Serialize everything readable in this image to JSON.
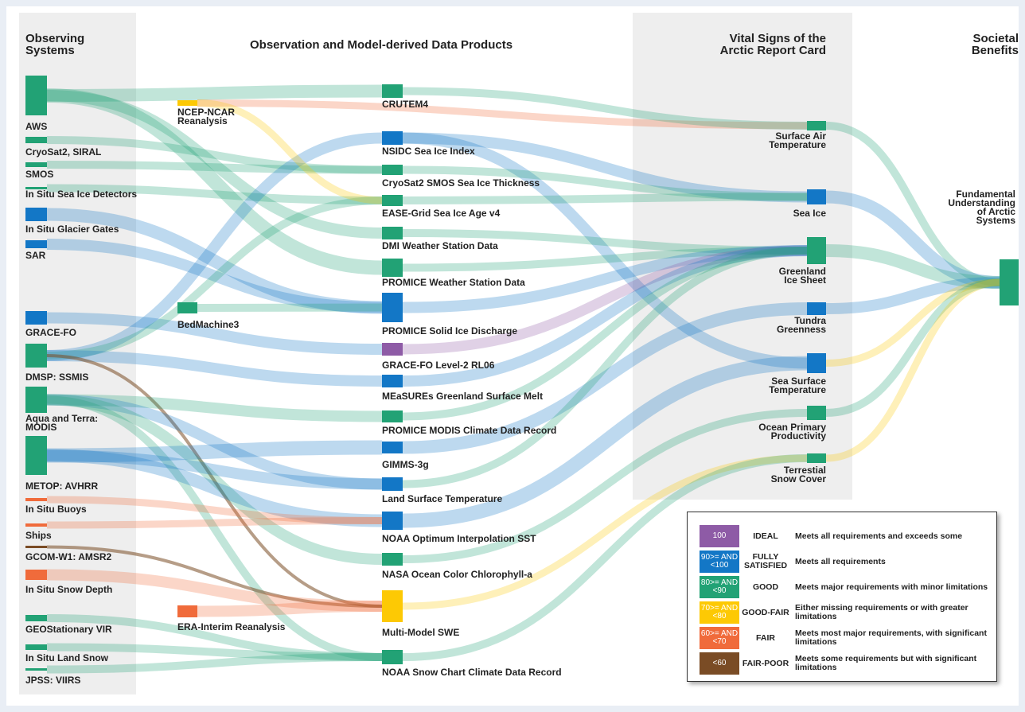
{
  "headers": {
    "observing_systems": "Observing Systems",
    "products": "Observation and Model-derived Data Products",
    "vital_signs": "Vital Signs of the Arctic Report Card",
    "societal_benefits": "Societal Benefits"
  },
  "colors": {
    "ideal": "#8e5ba6",
    "fully_satisfied": "#1377c6",
    "good": "#22a275",
    "good_fair": "#fdc904",
    "fair": "#f06b3b",
    "fair_poor": "#7a4c25"
  },
  "observing_systems": [
    {
      "id": "aws",
      "label": "AWS",
      "rating": "good"
    },
    {
      "id": "cryosat2",
      "label": "CryoSat2, SIRAL",
      "rating": "good"
    },
    {
      "id": "smos",
      "label": "SMOS",
      "rating": "good"
    },
    {
      "id": "insitu_sea_ice",
      "label": "In Situ Sea Ice Detectors",
      "rating": "good"
    },
    {
      "id": "insitu_glacier",
      "label": "In Situ Glacier Gates",
      "rating": "fully_satisfied"
    },
    {
      "id": "sar",
      "label": "SAR",
      "rating": "fully_satisfied"
    },
    {
      "id": "grace_fo",
      "label": "GRACE-FO",
      "rating": "fully_satisfied"
    },
    {
      "id": "dmsp",
      "label": "DMSP: SSMIS",
      "rating": "good"
    },
    {
      "id": "modis",
      "label": "Aqua and Terra: MODIS",
      "rating": "good"
    },
    {
      "id": "metop",
      "label": "METOP: AVHRR",
      "rating": "good"
    },
    {
      "id": "buoys",
      "label": "In Situ Buoys",
      "rating": "fair"
    },
    {
      "id": "ships",
      "label": "Ships",
      "rating": "fair"
    },
    {
      "id": "gcom",
      "label": "GCOM-W1: AMSR2",
      "rating": "fair_poor"
    },
    {
      "id": "snow_depth",
      "label": "In Situ Snow Depth",
      "rating": "fair"
    },
    {
      "id": "geo_vir",
      "label": "GEOStationary VIR",
      "rating": "good"
    },
    {
      "id": "land_snow",
      "label": "In Situ Land Snow",
      "rating": "good"
    },
    {
      "id": "jpss",
      "label": "JPSS: VIIRS",
      "rating": "good"
    }
  ],
  "side_products": [
    {
      "id": "ncep",
      "label": "NCEP-NCAR Reanalysis",
      "rating": "good_fair"
    },
    {
      "id": "bedmachine",
      "label": "BedMachine3",
      "rating": "good"
    },
    {
      "id": "era",
      "label": "ERA-Interim Reanalysis",
      "rating": "fair"
    }
  ],
  "products": [
    {
      "id": "crutem4",
      "label": "CRUTEM4",
      "rating": "good"
    },
    {
      "id": "nsidc",
      "label": "NSIDC Sea Ice Index",
      "rating": "fully_satisfied"
    },
    {
      "id": "cs2smos",
      "label": "CryoSat2 SMOS Sea Ice Thickness",
      "rating": "good"
    },
    {
      "id": "ease",
      "label": "EASE-Grid Sea Ice Age v4",
      "rating": "good"
    },
    {
      "id": "dmi",
      "label": "DMI Weather Station Data",
      "rating": "good"
    },
    {
      "id": "promice_ws",
      "label": "PROMICE Weather Station Data",
      "rating": "good"
    },
    {
      "id": "promice_sid",
      "label": "PROMICE Solid Ice Discharge",
      "rating": "fully_satisfied"
    },
    {
      "id": "grace_l2",
      "label": "GRACE-FO Level-2 RL06",
      "rating": "ideal"
    },
    {
      "id": "measures",
      "label": "MEaSUREs Greenland Surface Melt",
      "rating": "fully_satisfied"
    },
    {
      "id": "promice_modis",
      "label": "PROMICE MODIS Climate Data Record",
      "rating": "good"
    },
    {
      "id": "gimms",
      "label": "GIMMS-3g",
      "rating": "fully_satisfied"
    },
    {
      "id": "lst",
      "label": "Land Surface Temperature",
      "rating": "fully_satisfied"
    },
    {
      "id": "noaa_oisst",
      "label": "NOAA Optimum Interpolation SST",
      "rating": "fully_satisfied"
    },
    {
      "id": "nasa_chl",
      "label": "NASA Ocean Color Chlorophyll-a",
      "rating": "good"
    },
    {
      "id": "swe",
      "label": "Multi-Model SWE",
      "rating": "good_fair"
    },
    {
      "id": "noaa_snow",
      "label": "NOAA Snow Chart Climate Data Record",
      "rating": "good"
    }
  ],
  "vital_signs": [
    {
      "id": "sat",
      "label": "Surface Air Temperature",
      "rating": "good"
    },
    {
      "id": "sea_ice",
      "label": "Sea Ice",
      "rating": "fully_satisfied"
    },
    {
      "id": "greenland",
      "label": "Greenland Ice Sheet",
      "rating": "good"
    },
    {
      "id": "tundra",
      "label": "Tundra Greenness",
      "rating": "fully_satisfied"
    },
    {
      "id": "sst",
      "label": "Sea Surface Temperature",
      "rating": "fully_satisfied"
    },
    {
      "id": "opp",
      "label": "Ocean Primary Productivity",
      "rating": "good"
    },
    {
      "id": "snow_cover",
      "label": "Terrestial Snow Cover",
      "rating": "good"
    }
  ],
  "benefits": [
    {
      "id": "fund",
      "label": "Fundamental Understanding of Arctic Systems",
      "rating": "good"
    }
  ],
  "links": [
    [
      "aws",
      "crutem4",
      "good"
    ],
    [
      "aws",
      "dmi",
      "good"
    ],
    [
      "aws",
      "promice_ws",
      "good"
    ],
    [
      "cryosat2",
      "cs2smos",
      "good"
    ],
    [
      "smos",
      "cs2smos",
      "good"
    ],
    [
      "insitu_sea_ice",
      "ease",
      "good"
    ],
    [
      "insitu_glacier",
      "promice_sid",
      "fully_satisfied"
    ],
    [
      "sar",
      "promice_sid",
      "fully_satisfied"
    ],
    [
      "grace_fo",
      "grace_l2",
      "fully_satisfied"
    ],
    [
      "dmsp",
      "nsidc",
      "fully_satisfied"
    ],
    [
      "dmsp",
      "ease",
      "good"
    ],
    [
      "dmsp",
      "measures",
      "fully_satisfied"
    ],
    [
      "dmsp",
      "swe",
      "fair_poor"
    ],
    [
      "modis",
      "promice_modis",
      "good"
    ],
    [
      "modis",
      "lst",
      "fully_satisfied"
    ],
    [
      "modis",
      "nasa_chl",
      "good"
    ],
    [
      "modis",
      "noaa_snow",
      "good"
    ],
    [
      "metop",
      "gimms",
      "fully_satisfied"
    ],
    [
      "metop",
      "noaa_oisst",
      "fully_satisfied"
    ],
    [
      "metop",
      "lst",
      "fully_satisfied"
    ],
    [
      "buoys",
      "noaa_oisst",
      "fair"
    ],
    [
      "ships",
      "noaa_oisst",
      "fair"
    ],
    [
      "gcom",
      "swe",
      "fair_poor"
    ],
    [
      "snow_depth",
      "swe",
      "fair"
    ],
    [
      "geo_vir",
      "noaa_snow",
      "good"
    ],
    [
      "land_snow",
      "noaa_snow",
      "good"
    ],
    [
      "jpss",
      "noaa_snow",
      "good"
    ],
    [
      "ncep",
      "sat",
      "fair"
    ],
    [
      "ncep",
      "ease",
      "good_fair"
    ],
    [
      "bedmachine",
      "promice_sid",
      "good"
    ],
    [
      "era",
      "swe",
      "fair"
    ],
    [
      "crutem4",
      "sat",
      "good"
    ],
    [
      "nsidc",
      "sea_ice",
      "fully_satisfied"
    ],
    [
      "nsidc",
      "sst",
      "fully_satisfied"
    ],
    [
      "cs2smos",
      "sea_ice",
      "good"
    ],
    [
      "ease",
      "sea_ice",
      "good"
    ],
    [
      "dmi",
      "greenland",
      "good"
    ],
    [
      "promice_ws",
      "greenland",
      "good"
    ],
    [
      "promice_sid",
      "greenland",
      "fully_satisfied"
    ],
    [
      "grace_l2",
      "greenland",
      "ideal"
    ],
    [
      "measures",
      "greenland",
      "fully_satisfied"
    ],
    [
      "promice_modis",
      "greenland",
      "good"
    ],
    [
      "gimms",
      "tundra",
      "fully_satisfied"
    ],
    [
      "lst",
      "greenland",
      "good"
    ],
    [
      "noaa_oisst",
      "sst",
      "fully_satisfied"
    ],
    [
      "nasa_chl",
      "opp",
      "good"
    ],
    [
      "swe",
      "snow_cover",
      "good_fair"
    ],
    [
      "noaa_snow",
      "snow_cover",
      "good"
    ],
    [
      "sat",
      "fund",
      "good"
    ],
    [
      "sea_ice",
      "fund",
      "fully_satisfied"
    ],
    [
      "greenland",
      "fund",
      "good"
    ],
    [
      "tundra",
      "fund",
      "fully_satisfied"
    ],
    [
      "sst",
      "fund",
      "good_fair"
    ],
    [
      "opp",
      "fund",
      "good"
    ],
    [
      "snow_cover",
      "fund",
      "good_fair"
    ]
  ],
  "legend": [
    {
      "id": "ideal",
      "swatch": "100",
      "name": "IDEAL",
      "desc": "Meets all requirements and exceeds some"
    },
    {
      "id": "fully_satisfied",
      "swatch": "90>= AND <100",
      "name": "FULLY SATISFIED",
      "desc": "Meets all requirements"
    },
    {
      "id": "good",
      "swatch": "80>= AND <90",
      "name": "GOOD",
      "desc": "Meets major requirements with minor limitations"
    },
    {
      "id": "good_fair",
      "swatch": "70>= AND <80",
      "name": "GOOD-FAIR",
      "desc": "Either missing requirements or with greater limitations"
    },
    {
      "id": "fair",
      "swatch": "60>= AND <70",
      "name": "FAIR",
      "desc": "Meets most major requirements, with significant limitations"
    },
    {
      "id": "fair_poor",
      "swatch": "<60",
      "name": "FAIR-POOR",
      "desc": "Meets some requirements but with significant limitations"
    }
  ]
}
